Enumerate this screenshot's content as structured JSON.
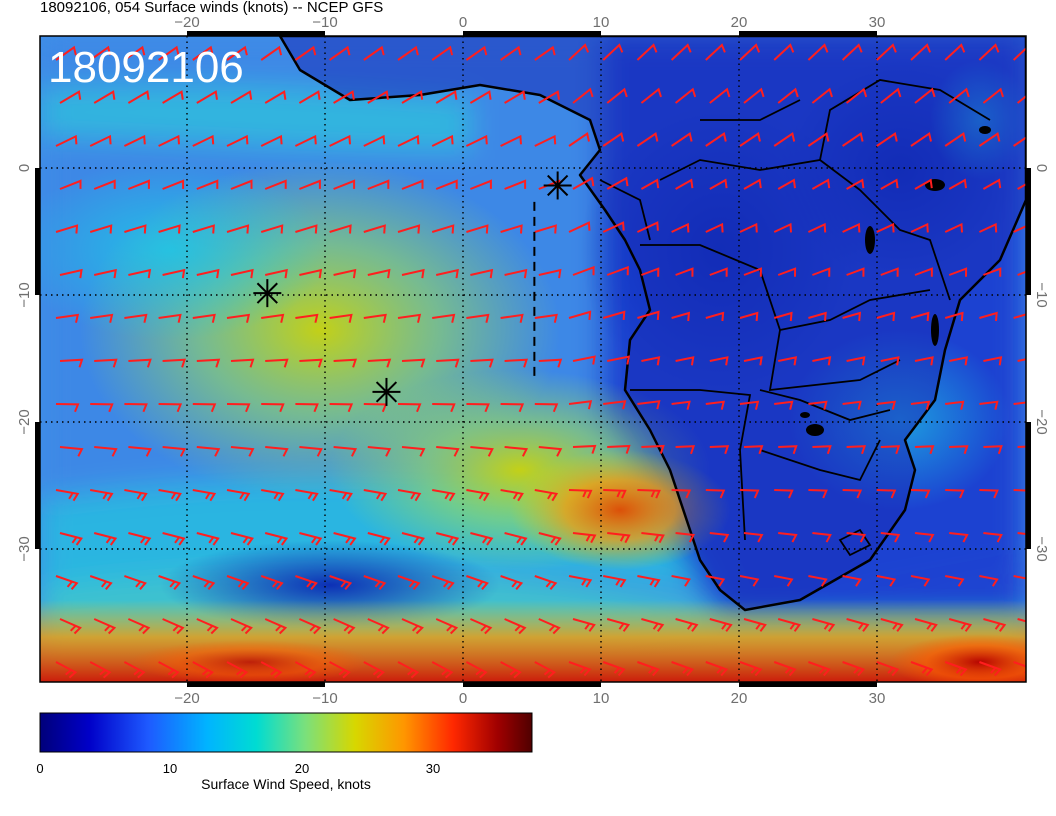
{
  "header": {
    "title": "18092106, 054 Surface winds (knots) -- NCEP GFS",
    "stamp": "18092106"
  },
  "axes": {
    "lon_top": [
      "−20",
      "−10",
      "0",
      "10",
      "20",
      "30"
    ],
    "lon_bottom": [
      "−20",
      "−10",
      "0",
      "10",
      "20",
      "30"
    ],
    "lat_left": [
      "0",
      "−10",
      "−20",
      "−30"
    ],
    "lat_right": [
      "0",
      "−10",
      "−20",
      "−30"
    ]
  },
  "colorbar": {
    "label": "Surface Wind Speed, knots",
    "ticks": [
      "0",
      "10",
      "20",
      "30"
    ],
    "colors": [
      "#00007a",
      "#0000c8",
      "#1e5aff",
      "#00b4ff",
      "#00dcd2",
      "#7be07b",
      "#d7d700",
      "#ff9600",
      "#ff2800",
      "#a00000",
      "#500000"
    ]
  },
  "chart_data": {
    "type": "heatmap",
    "title": "18092106, 054 Surface winds (knots) -- NCEP GFS",
    "x_range": [
      -31,
      41
    ],
    "y_range": [
      -39,
      12
    ],
    "colorbar_range": [
      0,
      38
    ],
    "markers": [
      {
        "symbol": "asterisk",
        "lon": 6.8,
        "lat": 0.2
      },
      {
        "symbol": "asterisk",
        "lon": -14.4,
        "lat": -8.3
      },
      {
        "symbol": "asterisk",
        "lon": -5.7,
        "lat": -16.1
      }
    ],
    "dashed_line": [
      [
        5.1,
        -1.1
      ],
      [
        5.1,
        -15.1
      ]
    ]
  }
}
